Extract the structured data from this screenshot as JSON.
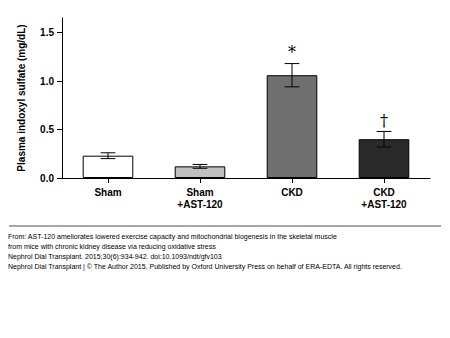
{
  "chart_data": {
    "type": "bar",
    "categories": [
      "Sham",
      "Sham\n+AST-120",
      "CKD",
      "CKD\n+AST-120"
    ],
    "values": [
      0.23,
      0.12,
      1.06,
      0.4
    ],
    "errors": [
      0.03,
      0.02,
      0.12,
      0.08
    ],
    "colors": [
      "#ffffff",
      "#c0c0c0",
      "#707070",
      "#2a2a2a"
    ],
    "ylabel": "Plasma indoxyl sulfate (mg/dL)",
    "ylim": [
      0,
      1.65
    ],
    "yticks": [
      {
        "value": 0,
        "label": "0.0"
      },
      {
        "value": 0.5,
        "label": "0.5"
      },
      {
        "value": 1,
        "label": "1.0"
      },
      {
        "value": 1.5,
        "label": "1.5"
      }
    ],
    "grid": false,
    "annotations": [
      {
        "category": "CKD",
        "text": "*"
      },
      {
        "category": "CKD\n+AST-120",
        "text": "†"
      }
    ],
    "caption": [
      "From: AST-120 ameliorates lowered exercise capacity and mitochondrial biogenesis in the skeletal muscle",
      "from mice with chronic kidney disease via reducing oxidative stress",
      "Nephrol Dial Transplant. 2015;30(6):934-942. doi:10.1093/ndt/gfv103",
      "Nephrol Dial Transplant | © The Author 2015. Published by Oxford University Press on behalf of ERA-EDTA. All rights reserved."
    ]
  }
}
